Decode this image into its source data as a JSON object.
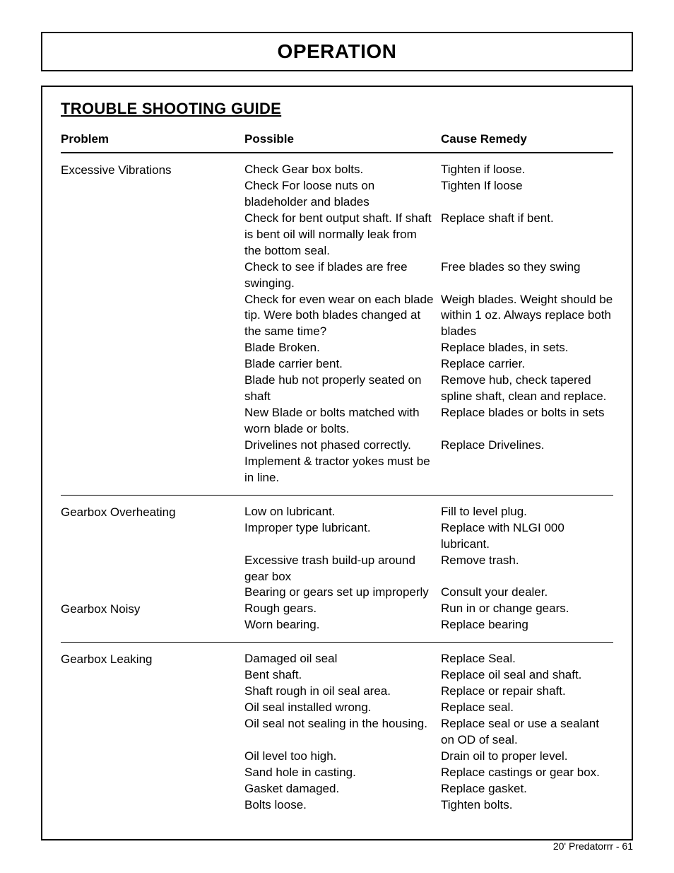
{
  "page_title": "OPERATION",
  "section_title": "TROUBLE SHOOTING GUIDE",
  "headers": {
    "problem": "Problem",
    "possible": "Possible",
    "remedy": "Cause Remedy"
  },
  "sections": [
    {
      "problem": "Excessive Vibrations",
      "rows": [
        {
          "possible": "Check Gear box bolts.",
          "remedy": "Tighten if loose."
        },
        {
          "possible": "Check For loose nuts on bladeholder and blades",
          "remedy": "Tighten If loose"
        },
        {
          "possible": "Check for bent output shaft. If shaft is bent oil will normally leak from the bottom seal.",
          "remedy": "Replace shaft if bent."
        },
        {
          "possible": "Check to see if blades are free swinging.",
          "remedy": "Free blades so they swing"
        },
        {
          "possible": "Check for even wear on each blade tip. Were both blades changed at the same time?",
          "remedy": "Weigh blades. Weight should be within 1 oz. Always replace both blades"
        },
        {
          "possible": "Blade Broken.",
          "remedy": "Replace blades, in sets."
        },
        {
          "possible": "Blade carrier bent.",
          "remedy": "Replace carrier."
        },
        {
          "possible": "Blade hub not properly seated on shaft",
          "remedy": "Remove hub, check tapered spline shaft, clean and replace."
        },
        {
          "possible": "New Blade or bolts matched with worn blade or bolts.",
          "remedy": "Replace blades or bolts in sets"
        },
        {
          "possible": "Drivelines not phased correctly. Implement & tractor yokes must be in line.",
          "remedy": "Replace Drivelines."
        }
      ],
      "divider_after": true
    },
    {
      "problem": "Gearbox Overheating",
      "rows": [
        {
          "possible": "Low on lubricant.",
          "remedy": "Fill to level plug."
        },
        {
          "possible": "Improper type lubricant.",
          "remedy": "Replace with NLGI 000 lubricant."
        },
        {
          "possible": "Excessive trash build-up around gear box",
          "remedy": "Remove trash."
        },
        {
          "possible": "Bearing or gears set up improperly",
          "remedy": "Consult your dealer."
        }
      ],
      "divider_after": false
    },
    {
      "problem": "Gearbox Noisy",
      "rows": [
        {
          "possible": "Rough gears.",
          "remedy": "Run in or change gears."
        },
        {
          "possible": "Worn bearing.",
          "remedy": "Replace bearing"
        }
      ],
      "divider_after": true
    },
    {
      "problem": "Gearbox Leaking",
      "rows": [
        {
          "possible": "Damaged oil seal",
          "remedy": "Replace Seal."
        },
        {
          "possible": "Bent shaft.",
          "remedy": "Replace oil seal and shaft."
        },
        {
          "possible": "Shaft rough in oil seal area.",
          "remedy": "Replace or repair shaft."
        },
        {
          "possible": "Oil seal installed wrong.",
          "remedy": "Replace seal."
        },
        {
          "possible": "Oil seal not sealing in the housing.",
          "remedy": "Replace seal or use a sealant on OD of seal."
        },
        {
          "possible": "Oil level too high.",
          "remedy": "Drain oil to proper level."
        },
        {
          "possible": "Sand hole in casting.",
          "remedy": "Replace castings or gear box."
        },
        {
          "possible": "Gasket damaged.",
          "remedy": "Replace gasket."
        },
        {
          "possible": "Bolts loose.",
          "remedy": "Tighten bolts."
        }
      ],
      "divider_after": false
    }
  ],
  "footer": "20' Predatorrr - 61",
  "colors": {
    "text": "#000000",
    "background": "#ffffff",
    "border": "#000000"
  }
}
